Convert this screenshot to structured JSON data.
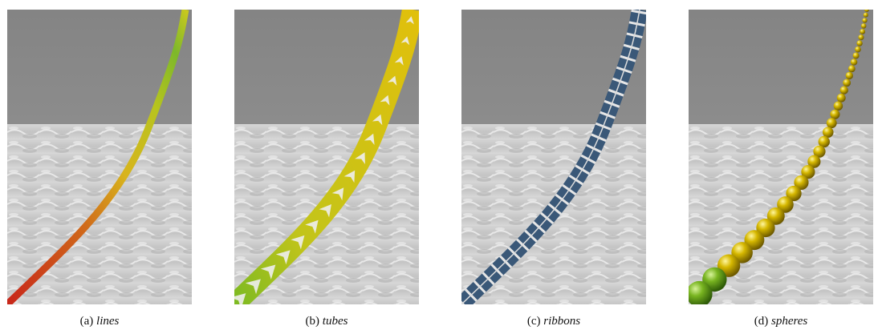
{
  "panels": [
    {
      "label": "(a)",
      "caption": "lines"
    },
    {
      "label": "(b)",
      "caption": "tubes"
    },
    {
      "label": "(c)",
      "caption": "ribbons"
    },
    {
      "label": "(d)",
      "caption": "spheres"
    }
  ]
}
